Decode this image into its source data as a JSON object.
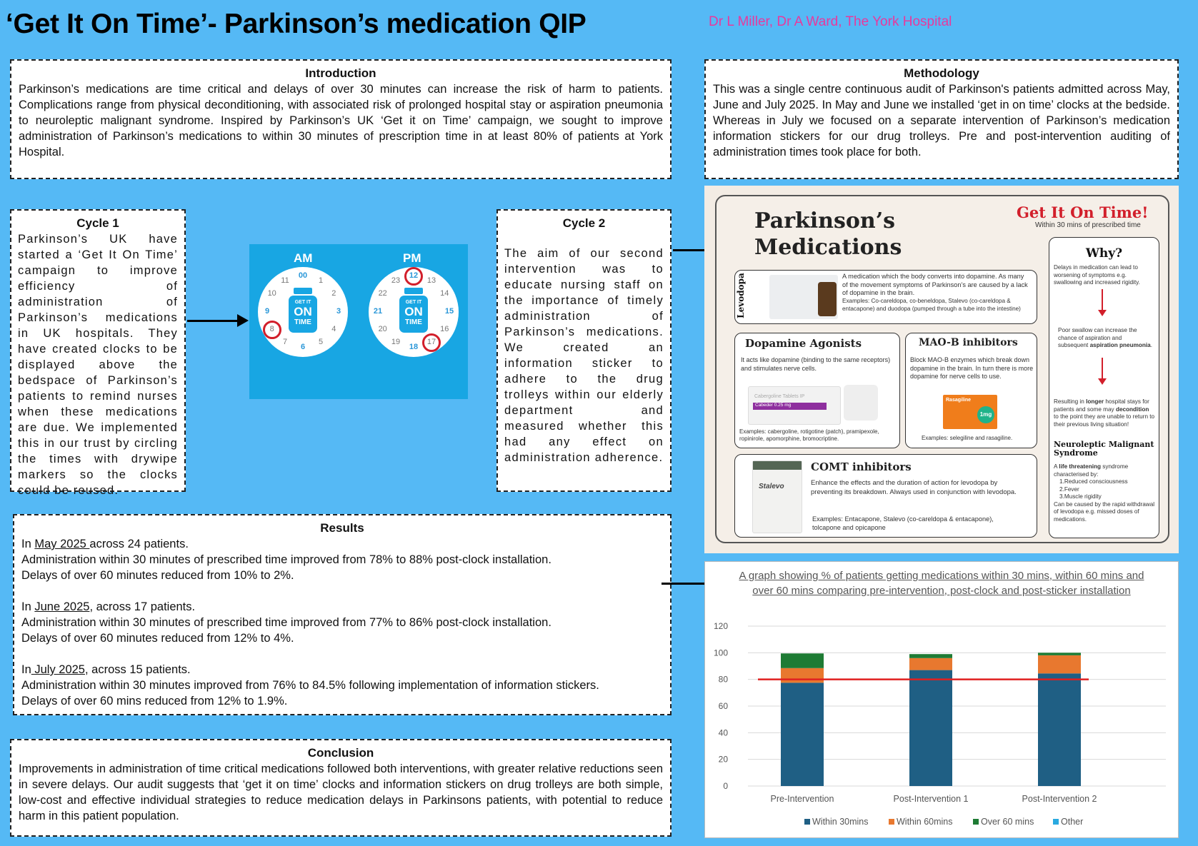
{
  "header": {
    "title": "‘Get It On Time’- Parkinson’s medication QIP",
    "authors": "Dr L Miller, Dr A Ward, The York Hospital"
  },
  "introduction": {
    "heading": "Introduction",
    "text": "Parkinson’s medications are time critical and delays of over 30 minutes can increase the risk of harm to patients. Complications range from physical deconditioning, with associated risk of prolonged hospital stay or aspiration pneumonia to neuroleptic malignant syndrome. Inspired by Parkinson’s UK ‘Get it on Time’ campaign, we sought to improve administration of Parkinson’s medications to within 30 minutes of prescription time in at least 80% of patients at York Hospital."
  },
  "methodology": {
    "heading": "Methodology",
    "text": "This was a single centre continuous audit of Parkinson's patients admitted across May, June and July 2025. In May and June we installed ‘get in on time’ clocks at the bedside. Whereas in July we focused on a separate intervention of Parkinson’s medication information stickers for our drug trolleys. Pre and post-intervention auditing of administration times took place for both."
  },
  "cycle1": {
    "heading": "Cycle 1",
    "text": "Parkinson’s UK have started a ‘Get It On Time’ campaign to improve efficiency of administration of Parkinson’s medications in UK hospitals. They have created clocks to be displayed above the bedspace of Parkinson’s patients to remind nurses when these medications are due.  We implemented this in our trust by circling the times with drywipe markers so the clocks could be reused."
  },
  "cycle2": {
    "heading": "Cycle 2",
    "text": "The aim of our second intervention was to educate nursing staff on the importance of timely administration of Parkinson’s medications. We created an information sticker to adhere to the drug trolleys within our elderly department and measured whether this had any effect on administration adherence."
  },
  "clocks": {
    "am_label": "AM",
    "pm_label": "PM",
    "logo_line1": "GET IT",
    "logo_line2": "ON",
    "logo_line3": "TIME",
    "am_numbers": [
      "00",
      "1",
      "2",
      "3",
      "4",
      "5",
      "6",
      "7",
      "8",
      "9",
      "10",
      "11"
    ],
    "pm_numbers": [
      "12",
      "13",
      "14",
      "15",
      "16",
      "17",
      "18",
      "19",
      "20",
      "21",
      "22",
      "23"
    ]
  },
  "results": {
    "heading": "Results",
    "may_prefix": "In ",
    "may_month": "May 2025 ",
    "may_suffix": "across 24 patients.",
    "may_line2": "Administration within 30 minutes of prescribed time improved from 78% to  88% post-clock installation.",
    "may_line3": "Delays of over 60 minutes reduced from 10% to 2%.",
    "june_prefix": "In ",
    "june_month": "June 2025",
    "june_suffix": ", across 17 patients.",
    "june_line2": "Administration within 30 minutes of prescribed time improved from 77% to 86% post-clock installation.",
    "june_line3": "Delays of over 60 minutes reduced from 12% to 4%.",
    "july_prefix": "In",
    "july_month": " July 2025",
    "july_suffix": ", across 15 patients.",
    "july_line2": "Administration within 30 minutes improved from 76% to 84.5% following implementation of information stickers.",
    "july_line3": "Delays of over 60 mins reduced from 12% to 1.9%."
  },
  "conclusion": {
    "heading": "Conclusion",
    "text": "Improvements in administration of time critical medications followed both interventions, with greater relative reductions seen in severe delays. Our audit suggests that ‘get it on time’ clocks and information stickers on drug trolleys are both simple, low-cost and effective individual strategies to reduce medication delays in Parkinsons patients, with potential to reduce harm in this patient population."
  },
  "poster": {
    "title_line1": "Parkinson’s",
    "title_line2": "Medications",
    "slogan": "Get It On Time!",
    "slogan_sub": "Within 30 mins of prescribed time",
    "levodopa": {
      "label": "Levodopa",
      "text": "A medication which the body converts into dopamine. As many of the movement symptoms of Parkinson’s are caused by a lack of dopamine in the brain.",
      "examples": "Examples: Co-careldopa, co-beneldopa, Stalevo (co-careldopa & entacapone) and duodopa (pumped through a tube into the intestine)"
    },
    "dopamine": {
      "name": "Dopamine Agonists",
      "text": "It acts like dopamine (binding to the same receptors) and stimulates nerve cells.",
      "examples": "Examples: cabergoline, rotigotine (patch), pramipexole, ropinirole, apomorphine, bromocriptine."
    },
    "maob": {
      "name": "MAO-B inhibitors",
      "text": "Block MAO-B enzymes which break down dopamine in the brain. In turn there is more dopamine for nerve cells to use.",
      "examples": "Examples: selegiline and rasagiline."
    },
    "comt": {
      "name": "COMT inhibitors",
      "text": "Enhance the effects and the duration of action for levodopa by preventing its breakdown. Always used in conjunction with levodopa.",
      "examples": "Examples: Entacapone, Stalevo (co-careldopa & entacapone), tolcapone and opicapone"
    },
    "why": {
      "heading": "Why?",
      "text1": "Delays in medication can lead to worsening of symptoms e.g. swallowing and increased rigidity.",
      "text2_a": "Poor swallow can increase the chance of aspiration and subsequent ",
      "text2_b": "aspiration pneumonia",
      "text2_c": ".",
      "text3_a": "Resulting in ",
      "text3_b": "longer",
      "text3_c": " hospital stays for patients and some may ",
      "text3_d": "decondition",
      "text3_e": " to the point they are unable to return to their previous living situation!",
      "nms_heading": "Neuroleptic Malignant Syndrome",
      "nms_a": "A ",
      "nms_b": "life threatening",
      "nms_c": " syndrome characterised by:",
      "nms_items": [
        "1.Reduced consciousness",
        "2.Fever",
        "3.Muscle rigidity"
      ],
      "nms_end": "Can be caused by the rapid withdrawal of levodopa e.g. missed doses of medications."
    },
    "pack_cabergoline": "Cabergoline Tablets IP",
    "pack_cabeder": "Cabeder 0.25 mg",
    "pack_rasagiline": "Rasagiline",
    "pack_dose": "1mg",
    "pack_stalevo": "Stalevo"
  },
  "chart_data": {
    "type": "bar",
    "stacked": true,
    "title": "A graph showing % of patients getting medications within 30 mins, within 60 mins and over 60 mins comparing pre-intervention, post-clock and post-sticker installation",
    "categories": [
      "Pre-Intervention",
      "Post-Intervention 1",
      "Post-Intervention 2"
    ],
    "series": [
      {
        "name": "Within 30mins",
        "color": "#1f5f84",
        "values": [
          77.5,
          87,
          84.5
        ]
      },
      {
        "name": "Within 60mins",
        "color": "#e8782f",
        "values": [
          11,
          9,
          13.6
        ]
      },
      {
        "name": "Over 60 mins",
        "color": "#1e7b34",
        "values": [
          11,
          3,
          1.9
        ]
      },
      {
        "name": "Other",
        "color": "#2aa9e0",
        "values": [
          0,
          0,
          0
        ]
      }
    ],
    "ylim": [
      0,
      120
    ],
    "yticks": [
      0,
      20,
      40,
      60,
      80,
      100,
      120
    ],
    "target_line": 80,
    "target_color": "#e02020",
    "legend": "bottom",
    "grid": true
  }
}
